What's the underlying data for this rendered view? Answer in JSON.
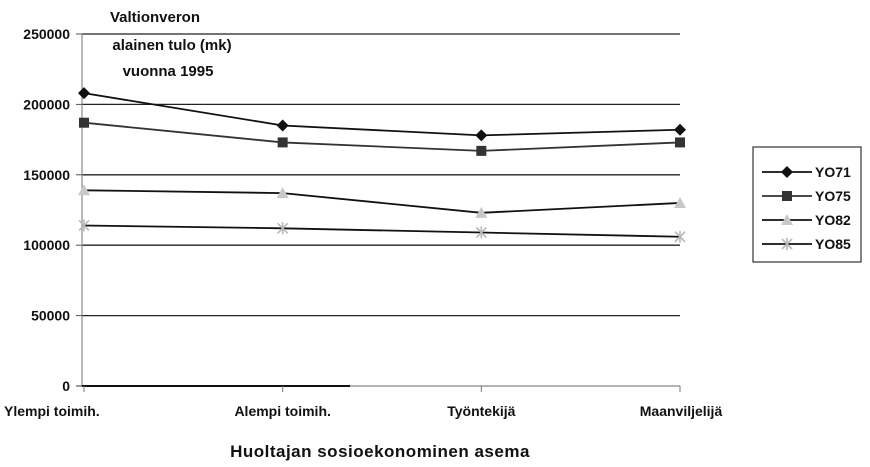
{
  "chart_data": {
    "type": "line",
    "title": [
      "Valtionveron",
      "alainen tulo (mk)",
      "vuonna 1995"
    ],
    "xlabel": "Huoltajan sosioekonominen asema",
    "ylabel": "",
    "categories": [
      "Ylempi toimih.",
      "Alempi toimih.",
      "Työntekijä",
      "Maanviljelijä"
    ],
    "ylim": [
      0,
      250000
    ],
    "yticks": [
      0,
      50000,
      100000,
      150000,
      200000,
      250000
    ],
    "ytick_labels": [
      "0",
      "50000",
      "100000",
      "150000",
      "200000",
      "250000"
    ],
    "grid": true,
    "legend_position": "right",
    "series": [
      {
        "name": "YO71",
        "values": [
          208000,
          185000,
          178000,
          182000
        ],
        "color": "#111111",
        "marker": "diamond"
      },
      {
        "name": "YO75",
        "values": [
          187000,
          173000,
          167000,
          173000
        ],
        "color": "#333333",
        "marker": "square"
      },
      {
        "name": "YO82",
        "values": [
          139000,
          137000,
          123000,
          130000
        ],
        "color": "#111111",
        "marker": "triangle",
        "marker_color": "#c8c8c8"
      },
      {
        "name": "YO85",
        "values": [
          114000,
          112000,
          109000,
          106000
        ],
        "color": "#111111",
        "marker": "star",
        "marker_color": "#b8b8b8"
      }
    ]
  }
}
